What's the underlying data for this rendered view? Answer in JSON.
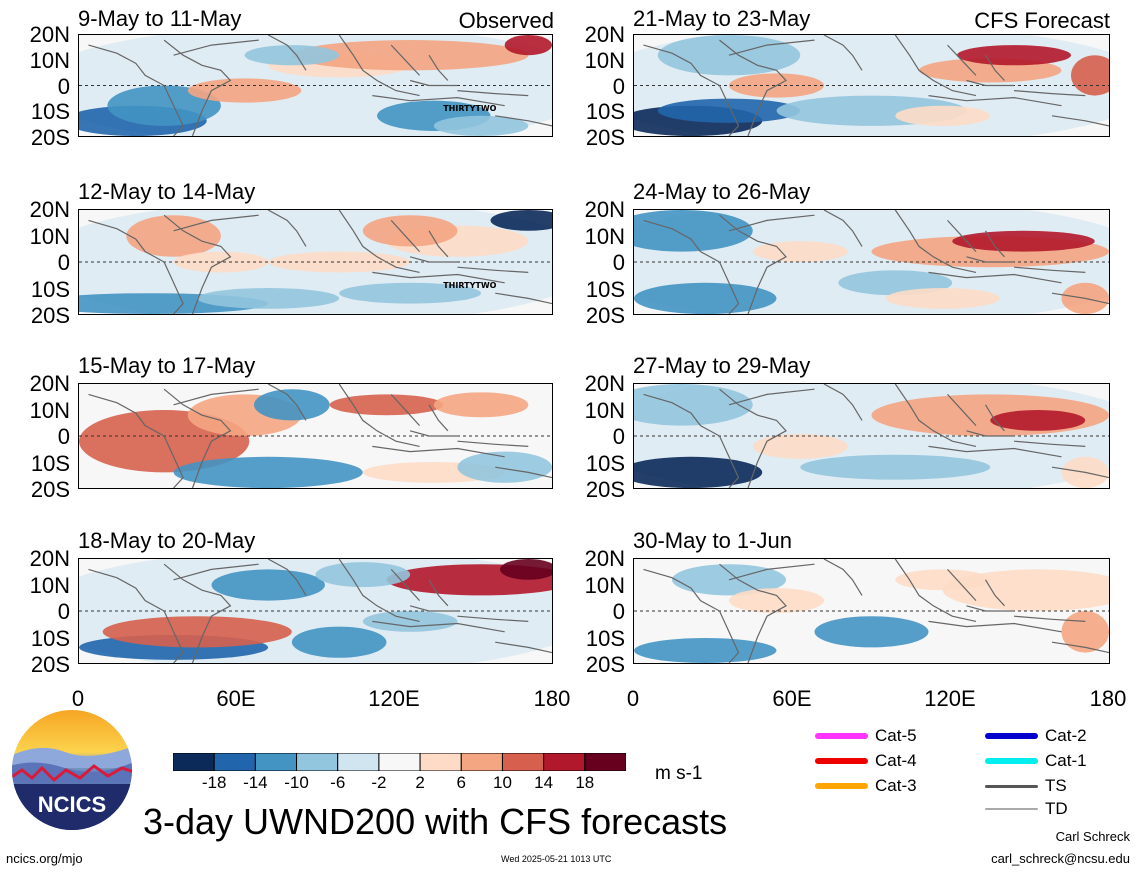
{
  "header": {
    "left_tag": "Observed",
    "right_tag": "CFS Forecast"
  },
  "lat_labels": [
    "20N",
    "10N",
    "0",
    "10S",
    "20S"
  ],
  "lon_labels": [
    "0",
    "60E",
    "120E",
    "180"
  ],
  "panels": [
    {
      "id": "p1",
      "title": "9-May to 11-May",
      "storm": "THIRTYTWO"
    },
    {
      "id": "p2",
      "title": "12-May to 14-May",
      "storm": "THIRTYTWO"
    },
    {
      "id": "p3",
      "title": "15-May to 17-May",
      "storm": ""
    },
    {
      "id": "p4",
      "title": "18-May to 20-May",
      "storm": ""
    },
    {
      "id": "p5",
      "title": "21-May to 23-May",
      "storm": ""
    },
    {
      "id": "p6",
      "title": "24-May to 26-May",
      "storm": ""
    },
    {
      "id": "p7",
      "title": "27-May to 29-May",
      "storm": ""
    },
    {
      "id": "p8",
      "title": "30-May to 1-Jun",
      "storm": ""
    }
  ],
  "colorbar": {
    "ticks": [
      "-18",
      "-14",
      "-10",
      "-6",
      "-2",
      "2",
      "6",
      "10",
      "14",
      "18"
    ],
    "colors": [
      "#0b2a5a",
      "#2166ac",
      "#4393c3",
      "#92c5de",
      "#d1e5f0",
      "#f7f7f7",
      "#fddbc7",
      "#f4a582",
      "#d6604d",
      "#b2182b",
      "#67001f"
    ],
    "units": "m s-1"
  },
  "legend": {
    "items": [
      {
        "label": "Cat-5",
        "color": "#ff33ff"
      },
      {
        "label": "Cat-4",
        "color": "#ee0000"
      },
      {
        "label": "Cat-3",
        "color": "#ffa500"
      },
      {
        "label": "Cat-2",
        "color": "#0000cc"
      },
      {
        "label": "Cat-1",
        "color": "#00eeee"
      },
      {
        "label": "TS",
        "color": "#555555"
      },
      {
        "label": "TD",
        "color": "#aaaaaa"
      }
    ]
  },
  "footer": {
    "logo_text": "NCICS",
    "title": "3-day UWND200 with CFS forecasts",
    "url": "ncics.org/mjo",
    "timestamp": "Wed 2025-05-21 1013 UTC",
    "author": "Carl Schreck",
    "email": "carl_schreck@ncsu.edu"
  },
  "chart_data": {
    "type": "heatmap",
    "variable": "UWND200",
    "units": "m s-1",
    "levels": [
      -18,
      -14,
      -10,
      -6,
      -2,
      2,
      6,
      10,
      14,
      18
    ],
    "lon_range": [
      0,
      180
    ],
    "lat_range": [
      -20,
      20
    ],
    "panels": [
      {
        "title": "9-May to 11-May",
        "source": "Observed"
      },
      {
        "title": "12-May to 14-May",
        "source": "Observed"
      },
      {
        "title": "15-May to 17-May",
        "source": "Observed"
      },
      {
        "title": "18-May to 20-May",
        "source": "Observed"
      },
      {
        "title": "21-May to 23-May",
        "source": "CFS Forecast"
      },
      {
        "title": "24-May to 26-May",
        "source": "CFS Forecast"
      },
      {
        "title": "27-May to 29-May",
        "source": "CFS Forecast"
      },
      {
        "title": "30-May to 1-Jun",
        "source": "CFS Forecast"
      }
    ]
  }
}
